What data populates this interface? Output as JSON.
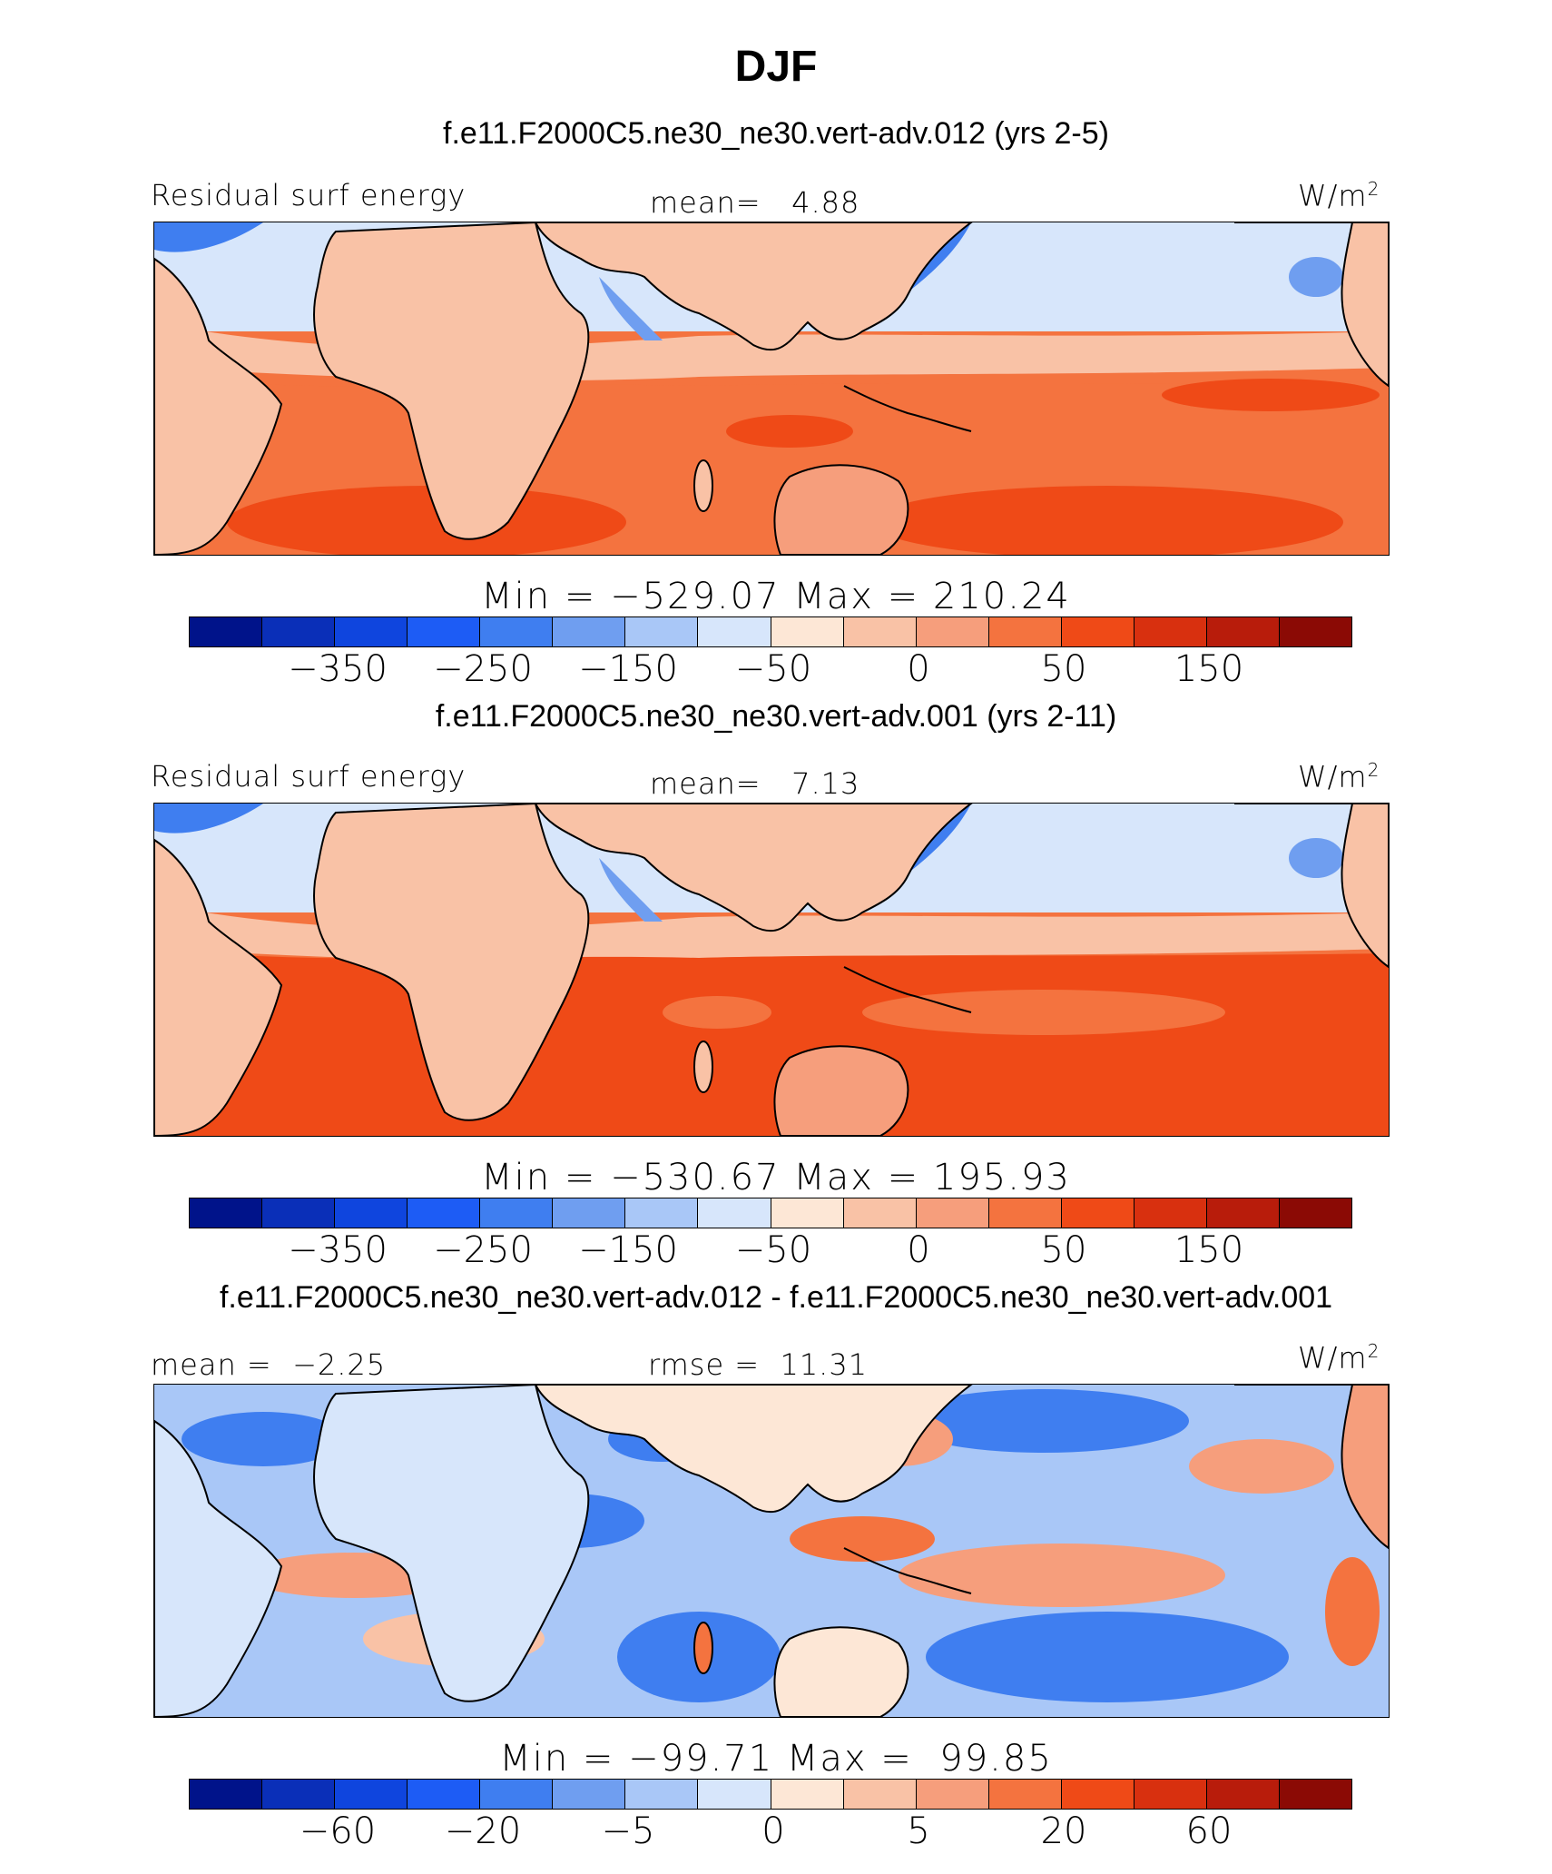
{
  "figure": {
    "title": "DJF"
  },
  "panels": [
    {
      "subtitle": "f.e11.F2000C5.ne30_ne30.vert-adv.012 (yrs 2-5)",
      "left_label": "Residual surf energy",
      "center_label": "mean=   4.88",
      "units": "W/m",
      "units_sup": "2",
      "min_max": "Min = −529.07 Max = 210.24",
      "colorbar_ticks": [
        "−350",
        "−250",
        "−150",
        "−50",
        "0",
        "50",
        "150"
      ]
    },
    {
      "subtitle": "f.e11.F2000C5.ne30_ne30.vert-adv.001 (yrs 2-11)",
      "left_label": "Residual surf energy",
      "center_label": "mean=   7.13",
      "units": "W/m",
      "units_sup": "2",
      "min_max": "Min = −530.67 Max = 195.93",
      "colorbar_ticks": [
        "−350",
        "−250",
        "−150",
        "−50",
        "0",
        "50",
        "150"
      ]
    },
    {
      "subtitle": "f.e11.F2000C5.ne30_ne30.vert-adv.012 - f.e11.F2000C5.ne30_ne30.vert-adv.001",
      "left_label": "mean =  −2.25",
      "center_label": "rmse =  11.31",
      "units": "W/m",
      "units_sup": "2",
      "min_max": "Min = −99.71 Max =  99.85",
      "colorbar_ticks": [
        "−60",
        "−20",
        "−5",
        "0",
        "5",
        "20",
        "60"
      ]
    }
  ],
  "colorbar_colors": [
    "#00138a",
    "#0a2fb8",
    "#0f45de",
    "#1d5cf5",
    "#3f7ef0",
    "#6f9ef0",
    "#a9c7f7",
    "#d7e6fb",
    "#fde7d6",
    "#f9c2a6",
    "#f69e7c",
    "#f4733f",
    "#ef4a17",
    "#d8300f",
    "#b81c0b",
    "#8b0a05"
  ],
  "chart_data": [
    {
      "type": "heatmap",
      "title": "f.e11.F2000C5.ne30_ne30.vert-adv.012 (yrs 2-5)",
      "variable": "Residual surf energy",
      "units": "W/m2",
      "mean": 4.88,
      "min": -529.07,
      "max": 210.24,
      "contour_levels": [
        "−350",
        "−250",
        "−150",
        "−50",
        "0",
        "50",
        "150"
      ]
    },
    {
      "type": "heatmap",
      "title": "f.e11.F2000C5.ne30_ne30.vert-adv.001 (yrs 2-11)",
      "variable": "Residual surf energy",
      "units": "W/m2",
      "mean": 7.13,
      "min": -530.67,
      "max": 195.93,
      "contour_levels": [
        "−350",
        "−250",
        "−150",
        "−50",
        "0",
        "50",
        "150"
      ]
    },
    {
      "type": "heatmap",
      "title": "f.e11.F2000C5.ne30_ne30.vert-adv.012 - f.e11.F2000C5.ne30_ne30.vert-adv.001",
      "units": "W/m2",
      "mean": -2.25,
      "rmse": 11.31,
      "min": -99.71,
      "max": 99.85,
      "contour_levels": [
        "−60",
        "−20",
        "−5",
        "0",
        "5",
        "20",
        "60"
      ]
    }
  ]
}
